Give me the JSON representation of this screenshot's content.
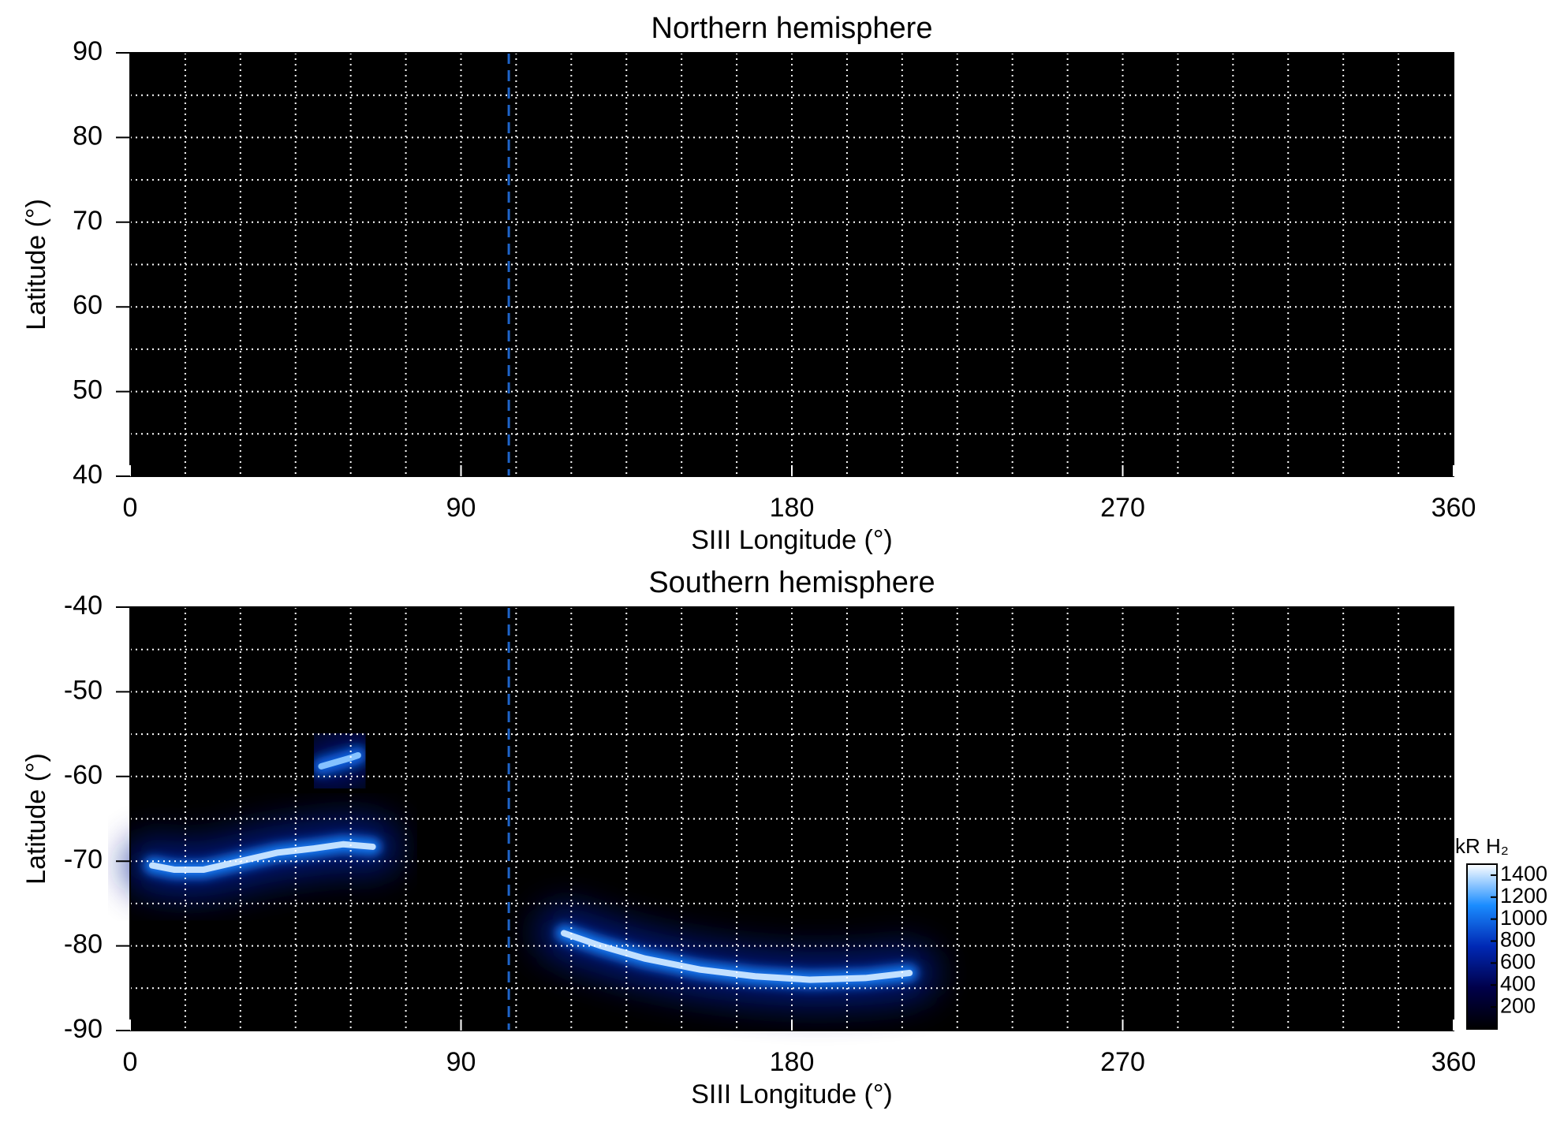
{
  "chart_data": [
    {
      "type": "heatmap",
      "title": "Northern hemisphere",
      "xlabel": "SIII Longitude (°)",
      "ylabel": "Latitude (°)",
      "xlim": [
        0,
        360
      ],
      "ylim": [
        40,
        90
      ],
      "xticks": [
        0,
        90,
        180,
        270,
        360
      ],
      "yticks": [
        40,
        50,
        60,
        70,
        80,
        90
      ],
      "xgrid": [
        15,
        30,
        45,
        60,
        75,
        90,
        105,
        120,
        135,
        150,
        165,
        180,
        195,
        210,
        225,
        240,
        255,
        270,
        285,
        300,
        315,
        330,
        345
      ],
      "ygrid": [
        45,
        50,
        55,
        60,
        65,
        70,
        75,
        80,
        85
      ],
      "vline": 103,
      "vline_color": "#1e64c8",
      "arcs": []
    },
    {
      "type": "heatmap",
      "title": "Southern hemisphere",
      "xlabel": "SIII Longitude (°)",
      "ylabel": "Latitude (°)",
      "xlim": [
        0,
        360
      ],
      "ylim": [
        -90,
        -40
      ],
      "xticks": [
        0,
        90,
        180,
        270,
        360
      ],
      "yticks": [
        -90,
        -80,
        -70,
        -60,
        -50,
        -40
      ],
      "xgrid": [
        15,
        30,
        45,
        60,
        75,
        90,
        105,
        120,
        135,
        150,
        165,
        180,
        195,
        210,
        225,
        240,
        255,
        270,
        285,
        300,
        315,
        330,
        345
      ],
      "ygrid": [
        -85,
        -80,
        -75,
        -70,
        -65,
        -60,
        -55,
        -50,
        -45
      ],
      "vline": 103,
      "vline_color": "#1e64c8",
      "arcs": [
        {
          "x": [
            6,
            12,
            20,
            30,
            40,
            50,
            58,
            66
          ],
          "y": [
            -70.5,
            -71,
            -71,
            -70,
            -69,
            -68.5,
            -68,
            -68.3
          ],
          "value": 1400
        },
        {
          "x": [
            52,
            56,
            60,
            62
          ],
          "y": [
            -58.8,
            -58.3,
            -57.8,
            -57.5
          ],
          "value": 1300
        },
        {
          "x": [
            118,
            128,
            140,
            155,
            170,
            185,
            200,
            212
          ],
          "y": [
            -78.5,
            -80,
            -81.5,
            -82.8,
            -83.6,
            -84,
            -83.8,
            -83.2
          ],
          "value": 1400
        }
      ],
      "colorbar_label": "kR H₂",
      "clim": [
        0,
        1500
      ],
      "cticks": [
        200,
        400,
        600,
        800,
        1000,
        1200,
        1400
      ],
      "colormap": [
        "#000000",
        "#00004a",
        "#0028b4",
        "#1a8cff",
        "#ffffff"
      ]
    }
  ]
}
